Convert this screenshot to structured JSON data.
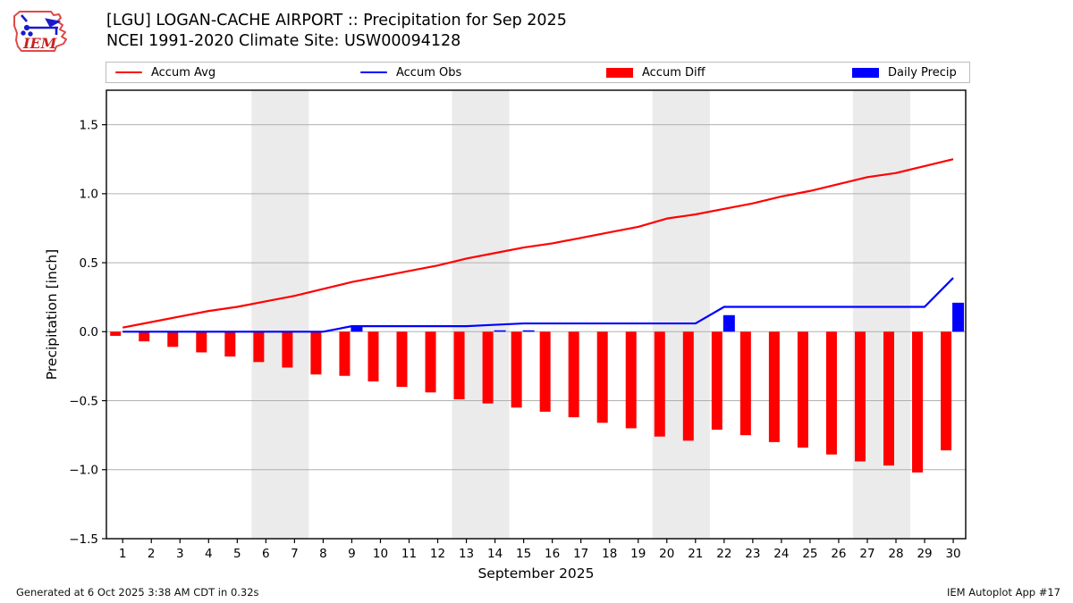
{
  "logo": {
    "text": "IEM"
  },
  "legend": {
    "items": [
      {
        "label": "Accum Avg",
        "color": "#ff0000",
        "swatch": "line"
      },
      {
        "label": "Accum Obs",
        "color": "#0000ff",
        "swatch": "line"
      },
      {
        "label": "Accum Diff",
        "color": "#ff0000",
        "swatch": "patch"
      },
      {
        "label": "Daily Precip",
        "color": "#0000ff",
        "swatch": "patch"
      }
    ]
  },
  "footer": {
    "generated": "Generated at 6 Oct 2025 3:38 AM CDT in 0.32s",
    "app": "IEM Autoplot App #17"
  },
  "chart_data": {
    "type": "line+bar",
    "title": "[LGU] LOGAN-CACHE AIRPORT :: Precipitation for Sep 2025",
    "subtitle": "NCEI 1991-2020 Climate Site: USW00094128",
    "xlabel": "September 2025",
    "ylabel": "Precipitation [inch]",
    "ylim": [
      -1.5,
      1.75
    ],
    "yticks": [
      -1.5,
      -1.0,
      -0.5,
      0.0,
      0.5,
      1.0,
      1.5
    ],
    "grid": true,
    "legend_position": "top",
    "days": [
      1,
      2,
      3,
      4,
      5,
      6,
      7,
      8,
      9,
      10,
      11,
      12,
      13,
      14,
      15,
      16,
      17,
      18,
      19,
      20,
      21,
      22,
      23,
      24,
      25,
      26,
      27,
      28,
      29,
      30
    ],
    "weekend_bands": [
      [
        6,
        7
      ],
      [
        13,
        14
      ],
      [
        20,
        21
      ],
      [
        27,
        28
      ]
    ],
    "colors": {
      "avg": "#ff0000",
      "obs": "#0000ff",
      "diff": "#ff0000",
      "daily": "#0000ff",
      "band": "#ebebeb",
      "grid": "#b0b0b0",
      "frame": "#000000"
    },
    "series": [
      {
        "name": "Accum Avg",
        "type": "line",
        "color": "#ff0000",
        "values": [
          0.03,
          0.07,
          0.11,
          0.15,
          0.18,
          0.22,
          0.26,
          0.31,
          0.36,
          0.4,
          0.44,
          0.48,
          0.53,
          0.57,
          0.61,
          0.64,
          0.68,
          0.72,
          0.76,
          0.82,
          0.85,
          0.89,
          0.93,
          0.98,
          1.02,
          1.07,
          1.12,
          1.15,
          1.2,
          1.25
        ]
      },
      {
        "name": "Accum Obs",
        "type": "line",
        "color": "#0000ff",
        "values": [
          0.0,
          0.0,
          0.0,
          0.0,
          0.0,
          0.0,
          0.0,
          0.0,
          0.04,
          0.04,
          0.04,
          0.04,
          0.04,
          0.05,
          0.06,
          0.06,
          0.06,
          0.06,
          0.06,
          0.06,
          0.06,
          0.18,
          0.18,
          0.18,
          0.18,
          0.18,
          0.18,
          0.18,
          0.18,
          0.39
        ]
      },
      {
        "name": "Accum Diff",
        "type": "bar",
        "color": "#ff0000",
        "values": [
          -0.03,
          -0.07,
          -0.11,
          -0.15,
          -0.18,
          -0.22,
          -0.26,
          -0.31,
          -0.32,
          -0.36,
          -0.4,
          -0.44,
          -0.49,
          -0.52,
          -0.55,
          -0.58,
          -0.62,
          -0.66,
          -0.7,
          -0.76,
          -0.79,
          -0.71,
          -0.75,
          -0.8,
          -0.84,
          -0.89,
          -0.94,
          -0.97,
          -1.02,
          -0.86
        ]
      },
      {
        "name": "Daily Precip",
        "type": "bar",
        "color": "#0000ff",
        "values": [
          0,
          0,
          0,
          0,
          0,
          0,
          0,
          0,
          0.04,
          0,
          0,
          0,
          0,
          0.01,
          0.01,
          0,
          0,
          0,
          0,
          0,
          0,
          0.12,
          0,
          0,
          0,
          0,
          0,
          0,
          0,
          0.21
        ]
      }
    ]
  }
}
